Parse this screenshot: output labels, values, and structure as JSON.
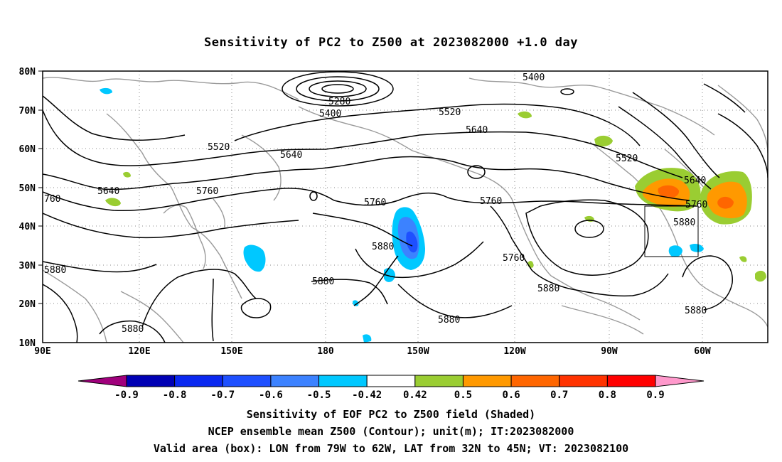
{
  "title": "Sensitivity of PC2 to Z500 at 2023082000 +1.0 day",
  "map": {
    "lat_ticks": [
      "80N",
      "70N",
      "60N",
      "50N",
      "40N",
      "30N",
      "20N",
      "10N"
    ],
    "lon_ticks": [
      "90E",
      "120E",
      "150E",
      "180",
      "150W",
      "120W",
      "90W",
      "60W"
    ],
    "grid": "dotted",
    "box": {
      "lon": [
        "79W",
        "62W"
      ],
      "lat": [
        "32N",
        "45N"
      ]
    },
    "contour_labels": [
      "5280",
      "5400",
      "5400",
      "5520",
      "5520",
      "5520",
      "5640",
      "5640",
      "5640",
      "5640",
      "5760",
      "5760",
      "5760",
      "5760",
      "5760",
      "760",
      "5880",
      "5880",
      "5880",
      "5880",
      "5880",
      "5880",
      "5880",
      "5880"
    ]
  },
  "colorbar": {
    "labels": [
      "-0.9",
      "-0.8",
      "-0.7",
      "-0.6",
      "-0.5",
      "-0.42",
      "0.42",
      "0.5",
      "0.6",
      "0.7",
      "0.8",
      "0.9"
    ],
    "colors": [
      "#a0007c",
      "#0000b4",
      "#0a28f0",
      "#1e50ff",
      "#3c82ff",
      "#00c8ff",
      "#ffffff",
      "#9acd32",
      "#ff9900",
      "#ff6600",
      "#ff3300",
      "#ff0000",
      "#ff99cc"
    ]
  },
  "captions": [
    "Sensitivity of EOF PC2 to Z500 field (Shaded)",
    "NCEP ensemble mean Z500 (Contour); unit(m); IT:2023082000",
    "Valid area (box): LON from 79W to 62W, LAT from 32N to 45N; VT: 2023082100"
  ]
}
